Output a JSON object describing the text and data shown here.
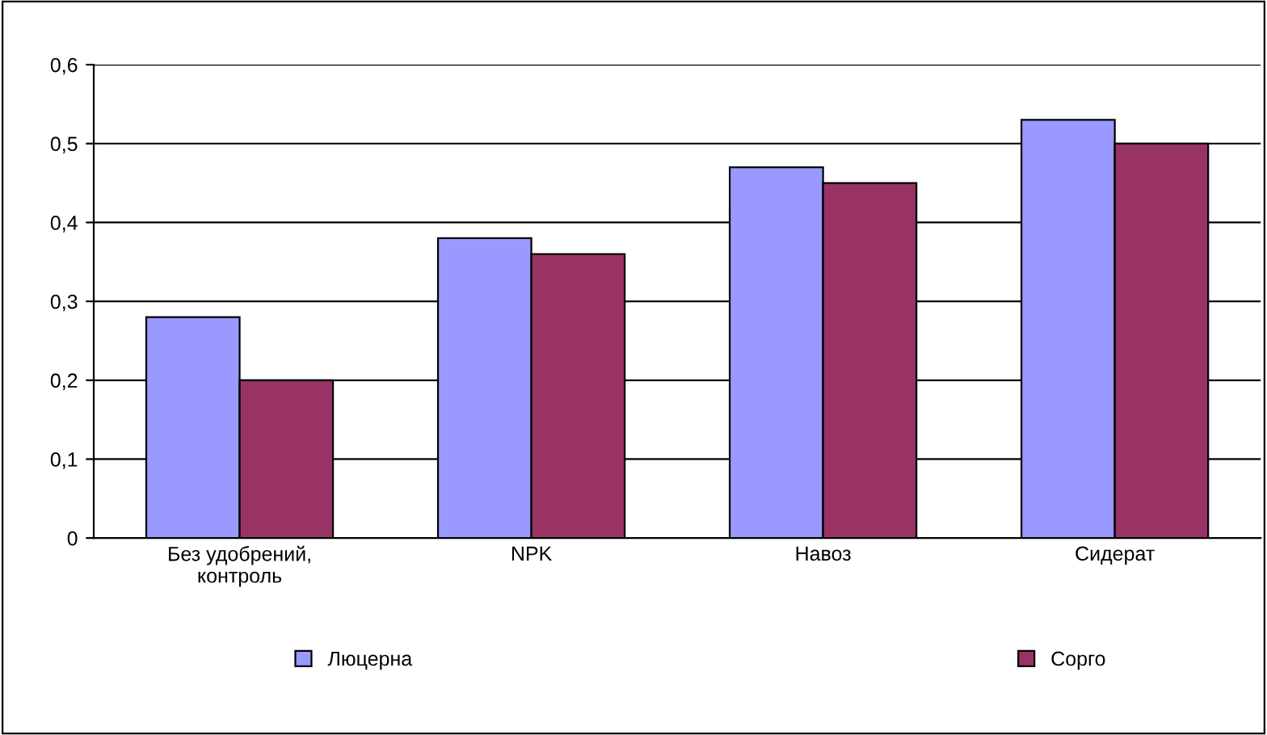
{
  "chart_data": {
    "type": "bar",
    "categories": [
      "Без удобрений,\nконтроль",
      "NPK",
      "Навоз",
      "Сидерат"
    ],
    "series": [
      {
        "name": "Люцерна",
        "color": "#9999ff",
        "values": [
          0.28,
          0.38,
          0.47,
          0.53
        ]
      },
      {
        "name": "Сорго",
        "color": "#993366",
        "values": [
          0.2,
          0.36,
          0.45,
          0.5
        ]
      }
    ],
    "ylim": [
      0,
      0.6
    ],
    "yticks": [
      0,
      {
        "value": 0.1,
        "label": "0,1"
      },
      {
        "value": 0.2,
        "label": "0,2"
      },
      {
        "value": 0.3,
        "label": "0,3"
      },
      {
        "value": 0.4,
        "label": "0,4"
      },
      {
        "value": 0.5,
        "label": "0,5"
      },
      {
        "value": 0.6,
        "label": "0,6"
      }
    ],
    "grid": "y",
    "legend": "bottom"
  }
}
